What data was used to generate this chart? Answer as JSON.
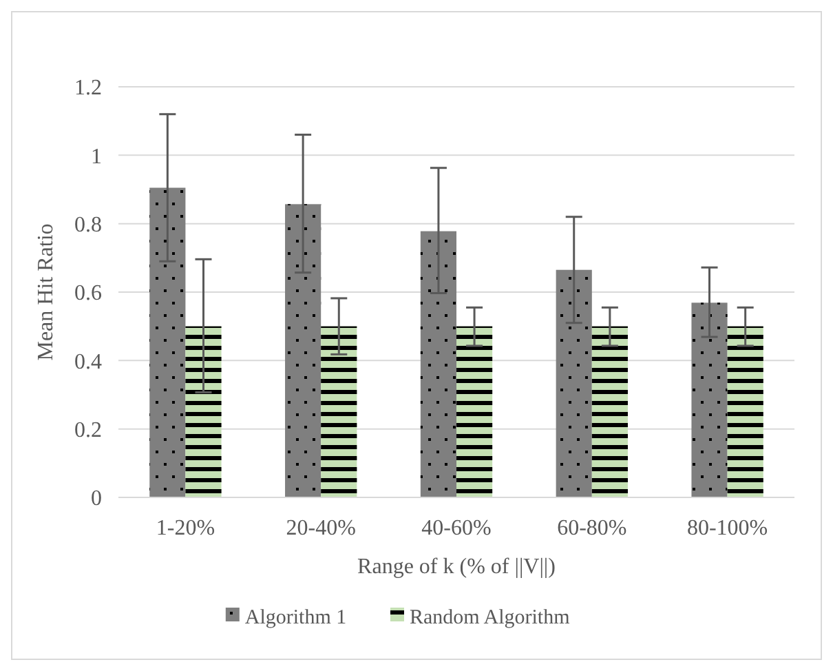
{
  "chart_data": {
    "type": "bar",
    "xlabel": "Range of k (% of ||V||)",
    "ylabel": "Mean Hit Ratio",
    "categories": [
      "1-20%",
      "20-40%",
      "40-60%",
      "60-80%",
      "80-100%"
    ],
    "series": [
      {
        "name": "Algorithm 1",
        "color": "#7f7f7f",
        "values": [
          0.905,
          0.857,
          0.778,
          0.665,
          0.569
        ],
        "errors": [
          [
            0.69,
            1.12
          ],
          [
            0.657,
            1.06
          ],
          [
            0.597,
            0.963
          ],
          [
            0.51,
            0.82
          ],
          [
            0.469,
            0.672
          ]
        ]
      },
      {
        "name": "Random Algorithm",
        "color": "#c5e0b4",
        "values": [
          0.5,
          0.5,
          0.5,
          0.5,
          0.5
        ],
        "errors": [
          [
            0.307,
            0.696
          ],
          [
            0.418,
            0.582
          ],
          [
            0.443,
            0.555
          ],
          [
            0.443,
            0.555
          ],
          [
            0.443,
            0.555
          ]
        ]
      }
    ],
    "ylim": [
      0,
      1.2
    ],
    "yticks": [
      0,
      0.2,
      0.4,
      0.6,
      0.8,
      1,
      1.2
    ],
    "grid": "y",
    "legend": "bottom"
  }
}
